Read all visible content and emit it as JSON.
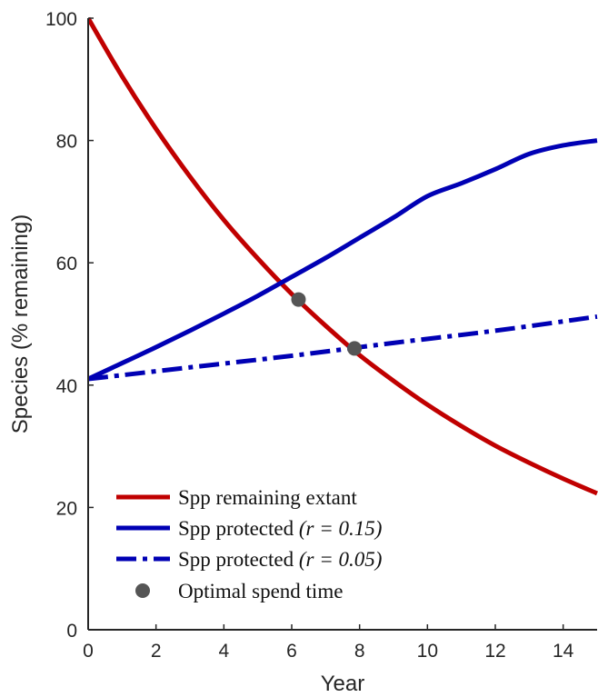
{
  "chart_data": {
    "type": "line",
    "title": "",
    "xlabel": "Year",
    "ylabel": "Species (% remaining)",
    "xlim": [
      0,
      15
    ],
    "ylim": [
      0,
      100
    ],
    "xticks": [
      0,
      2,
      4,
      6,
      8,
      10,
      12,
      14
    ],
    "yticks": [
      0,
      20,
      40,
      60,
      80,
      100
    ],
    "grid": false,
    "legend_position": "bottom-left",
    "series": [
      {
        "name": "Spp remaining extant",
        "style": "solid",
        "color": "#c00000",
        "x": [
          0,
          1,
          2,
          3,
          4,
          5,
          6,
          7,
          8,
          9,
          10,
          11,
          12,
          13,
          14,
          15
        ],
        "y": [
          100,
          90.5,
          81.9,
          74.1,
          67.0,
          60.7,
          54.9,
          49.7,
          44.9,
          40.7,
          36.8,
          33.3,
          30.1,
          27.3,
          24.7,
          22.3
        ]
      },
      {
        "name": "Spp protected (r = 0.15)",
        "style": "solid",
        "color": "#0000b4",
        "x": [
          0,
          1,
          2,
          3,
          4,
          5,
          6,
          7,
          8,
          9,
          10,
          11,
          12,
          13,
          14,
          15
        ],
        "y": [
          41.0,
          43.6,
          46.2,
          48.9,
          51.7,
          54.6,
          57.7,
          60.8,
          64.1,
          67.4,
          70.9,
          73.0,
          75.3,
          77.8,
          79.2,
          80.0
        ]
      },
      {
        "name": "Spp protected (r = 0.05)",
        "style": "dashdot",
        "color": "#0000b4",
        "x": [
          0,
          3,
          6,
          9,
          12,
          15
        ],
        "y": [
          41.0,
          42.9,
          44.8,
          46.9,
          48.9,
          51.2
        ]
      },
      {
        "name": "Optimal spend time",
        "style": "marker",
        "color": "#555555",
        "x": [
          6.2,
          7.85
        ],
        "y": [
          54.0,
          46.0
        ]
      }
    ],
    "legend": [
      {
        "label": "Spp remaining extant",
        "style": "solid",
        "color": "#c00000"
      },
      {
        "label": "Spp protected ",
        "math": "(r = 0.15)",
        "style": "solid",
        "color": "#0000b4"
      },
      {
        "label": "Spp protected ",
        "math": "(r = 0.05)",
        "style": "dashdot",
        "color": "#0000b4"
      },
      {
        "label": "Optimal spend time",
        "style": "marker",
        "color": "#555555"
      }
    ]
  }
}
